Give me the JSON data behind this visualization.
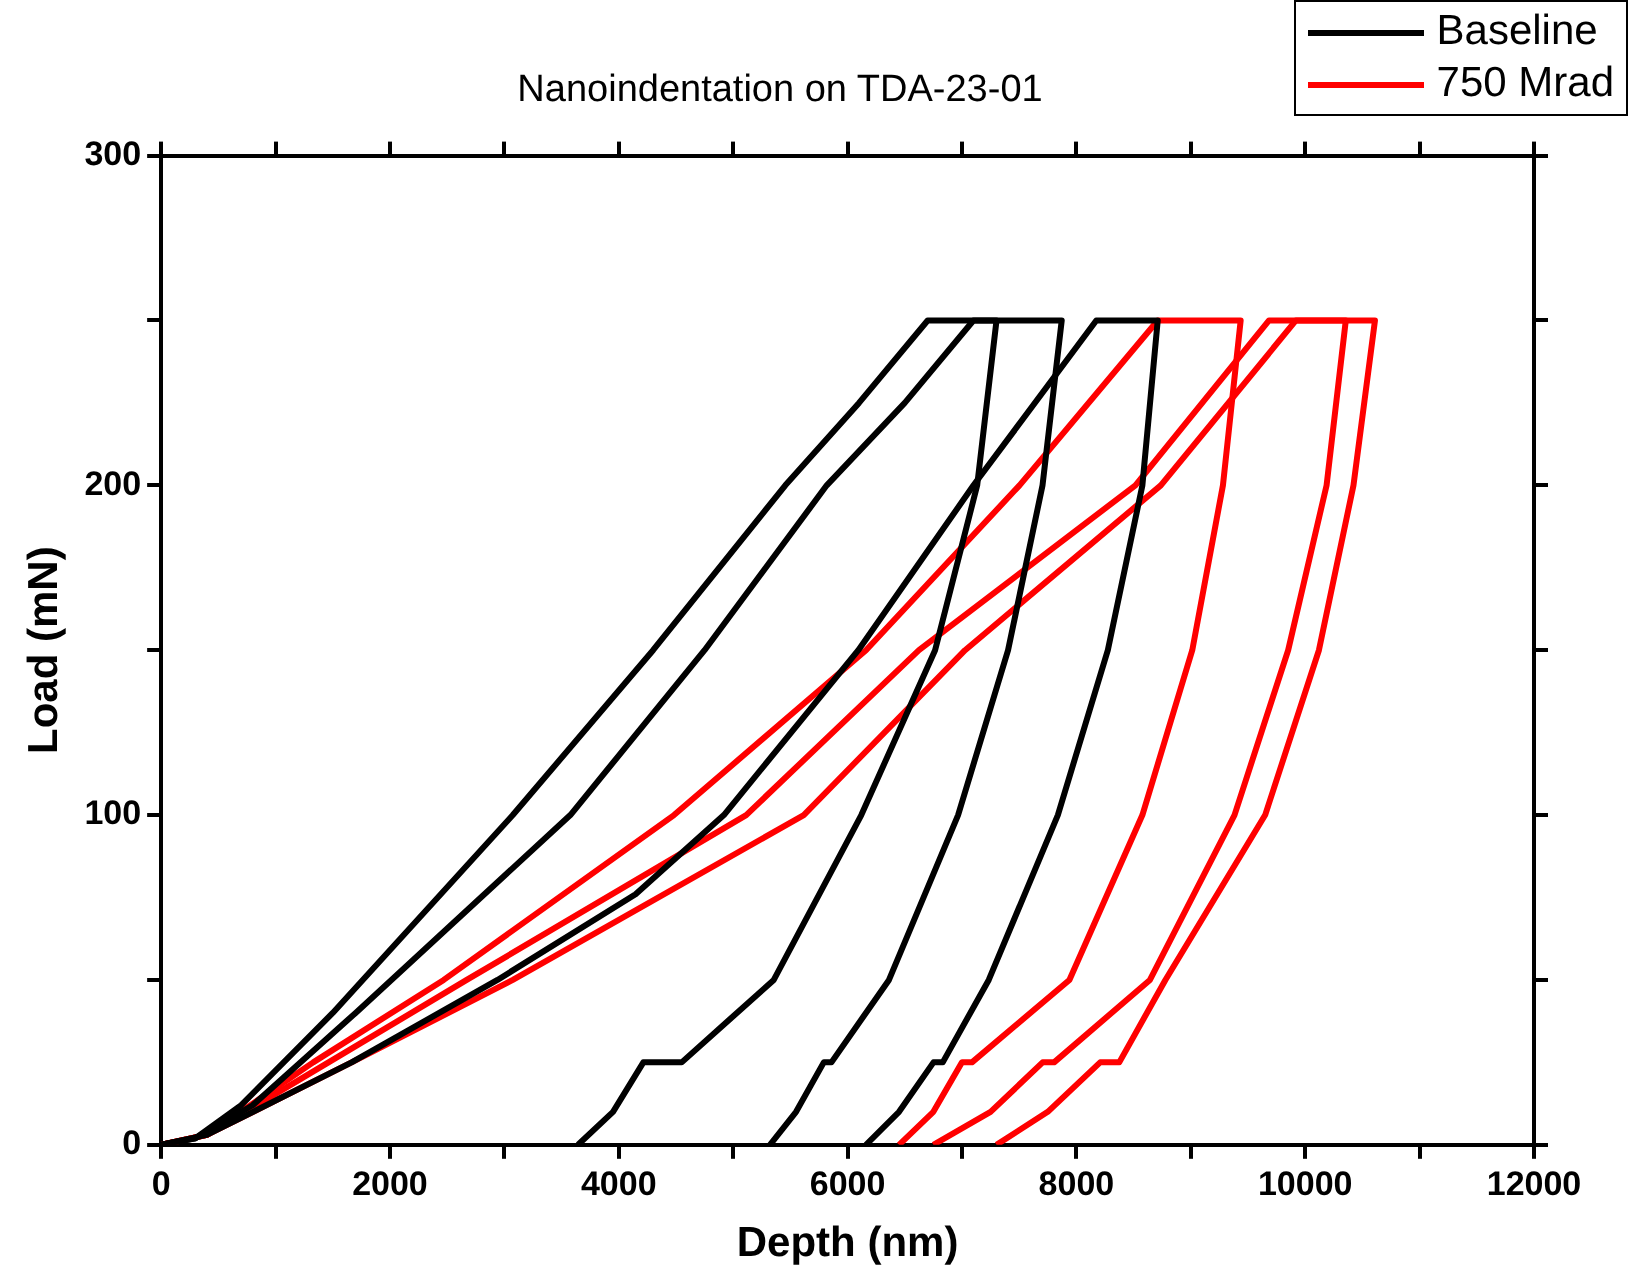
{
  "chart_data": {
    "type": "line",
    "title": "Nanoindentation on TDA-23-01",
    "xlabel": "Depth (nm)",
    "ylabel": "Load (mN)",
    "xlim": [
      0,
      12000
    ],
    "ylim": [
      0,
      300
    ],
    "xticks": [
      0,
      {
        "value": 1000,
        "label": null
      },
      2000,
      {
        "value": 3000,
        "label": null
      },
      4000,
      {
        "value": 5000,
        "label": null
      },
      6000,
      {
        "value": 7000,
        "label": null
      },
      8000,
      {
        "value": 9000,
        "label": null
      },
      10000,
      {
        "value": 11000,
        "label": null
      },
      12000
    ],
    "yticks": [
      0,
      {
        "value": 50,
        "label": null
      },
      100,
      {
        "value": 150,
        "label": null
      },
      200,
      {
        "value": 250,
        "label": null
      },
      300
    ],
    "grid": false,
    "legend": "top right",
    "marker": "none",
    "line_style": "solid",
    "series": [
      {
        "name": "Baseline",
        "color": "#000000",
        "x": [
          0,
          300,
          700,
          1500,
          3074,
          4300,
          5456,
          6100,
          6700,
          7302,
          7133,
          6765,
          6120,
          5355,
          4550,
          4215,
          3950,
          3644
        ],
        "values": [
          0,
          2,
          12,
          40,
          100,
          150,
          200,
          225,
          250,
          250,
          200,
          150,
          100,
          50,
          25,
          25,
          10,
          0
        ]
      },
      {
        "color": "#000000",
        "x": [
          0,
          300,
          800,
          1700,
          3577,
          4750,
          5818,
          6500,
          7100,
          7872,
          7704,
          7403,
          6966,
          6362,
          5859,
          5792,
          5550,
          5322
        ],
        "values": [
          0,
          2,
          12,
          40,
          100,
          150,
          200,
          225,
          250,
          250,
          200,
          150,
          100,
          50,
          25,
          25,
          10,
          0
        ]
      },
      {
        "color": "#000000",
        "x": [
          0,
          400,
          1665,
          2940,
          4147,
          4919,
          6094,
          7101,
          8174,
          8711,
          8577,
          8275,
          7838,
          7234,
          6832,
          6751,
          6450,
          6161
        ],
        "values": [
          0,
          3,
          25,
          50,
          76,
          100,
          150,
          200,
          250,
          250,
          200,
          150,
          100,
          50,
          25,
          25,
          10,
          0
        ]
      },
      {
        "color": "#ff0000",
        "x": [
          0,
          400,
          1329,
          2470,
          4483,
          6161,
          7503,
          8711,
          9436,
          9281,
          9013,
          8577,
          7939,
          7087,
          7000,
          6750,
          6450
        ],
        "values": [
          0,
          3,
          25,
          50,
          100,
          150,
          200,
          250,
          250,
          200,
          150,
          100,
          50,
          25,
          25,
          10,
          0
        ]
      },
      {
        "name": "750 Mrad",
        "color": "#ff0000",
        "x": [
          0,
          400,
          1463,
          2671,
          5114,
          6624,
          8516,
          9684,
          10355,
          10187,
          9851,
          9382,
          8643,
          7805,
          7705,
          7250,
          6750
        ],
        "values": [
          0,
          3,
          25,
          50,
          100,
          150,
          200,
          250,
          250,
          200,
          150,
          100,
          50,
          25,
          25,
          10,
          0
        ]
      },
      {
        "color": "#ff0000",
        "x": [
          0,
          400,
          1665,
          3074,
          5617,
          7027,
          8738,
          9919,
          10610,
          10422,
          10120,
          9650,
          8778,
          8375,
          8208,
          7750,
          7302
        ],
        "values": [
          0,
          3,
          25,
          50,
          100,
          150,
          200,
          250,
          250,
          200,
          150,
          100,
          50,
          25,
          25,
          10,
          0
        ]
      }
    ]
  }
}
